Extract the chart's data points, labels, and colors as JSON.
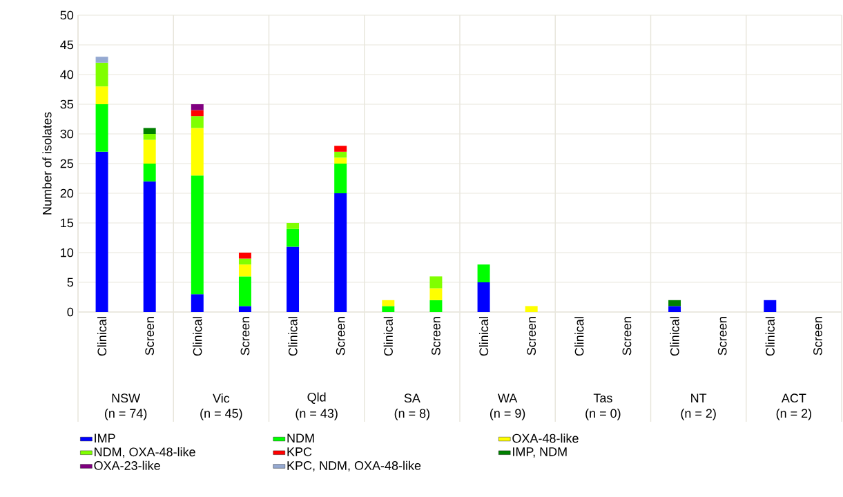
{
  "chart_data": {
    "type": "bar",
    "stacked": true,
    "ylabel": "Number of isolates",
    "categories": [
      "Clinical",
      "Screen",
      "Clinical",
      "Screen",
      "Clinical",
      "Screen",
      "Clinical",
      "Screen",
      "Clinical",
      "Screen",
      "Clinical",
      "Screen",
      "Clinical",
      "Screen",
      "Clinical",
      "Screen"
    ],
    "series": [
      {
        "name": "IMP",
        "color": "#0000ff",
        "values": [
          27,
          22,
          3,
          1,
          11,
          20,
          null,
          null,
          5,
          null,
          null,
          null,
          1,
          null,
          2,
          null
        ]
      },
      {
        "name": "NDM",
        "color": "#00ff00",
        "values": [
          8,
          3,
          20,
          5,
          3,
          5,
          1,
          2,
          3,
          null,
          null,
          null,
          null,
          null,
          null,
          null
        ]
      },
      {
        "name": "OXA-48-like",
        "color": "#ffff00",
        "values": [
          3,
          4,
          8,
          2,
          null,
          1,
          1,
          2,
          null,
          1,
          null,
          null,
          null,
          null,
          null,
          null
        ]
      },
      {
        "name": "NDM, OXA-48-like",
        "color": "#80ff00",
        "values": [
          4,
          1,
          2,
          1,
          1,
          1,
          null,
          2,
          null,
          null,
          null,
          null,
          null,
          null,
          null,
          null
        ]
      },
      {
        "name": "KPC",
        "color": "#ff0000",
        "values": [
          null,
          null,
          1,
          1,
          null,
          1,
          null,
          null,
          null,
          null,
          null,
          null,
          null,
          null,
          null,
          null
        ]
      },
      {
        "name": "IMP, NDM",
        "color": "#008000",
        "values": [
          null,
          1,
          null,
          null,
          null,
          null,
          null,
          null,
          null,
          null,
          null,
          null,
          1,
          null,
          null,
          null
        ]
      },
      {
        "name": "OXA-23-like",
        "color": "#800080",
        "values": [
          null,
          null,
          1,
          null,
          null,
          null,
          null,
          null,
          null,
          null,
          null,
          null,
          null,
          null,
          null,
          null
        ]
      },
      {
        "name": "KPC, NDM, OXA-48-like",
        "color": "#95a9d1",
        "values": [
          1,
          null,
          null,
          null,
          null,
          null,
          null,
          null,
          null,
          null,
          null,
          null,
          null,
          null,
          null,
          null
        ]
      }
    ],
    "annotations": [
      "NSW",
      "(n = 74)",
      "Vic",
      "(n = 45)",
      "Qld",
      "(n = 43)",
      "SA",
      "(n = 8)",
      "WA",
      "(n = 9)",
      "Tas",
      "(n = 0)",
      "NT",
      "(n = 2)",
      "ACT",
      "(n = 2)"
    ],
    "ylim": [
      0,
      50
    ],
    "yticks": [
      0,
      5,
      10,
      15,
      20,
      25,
      30,
      35,
      40,
      45,
      50
    ],
    "grid": true,
    "legend": "bottom"
  }
}
